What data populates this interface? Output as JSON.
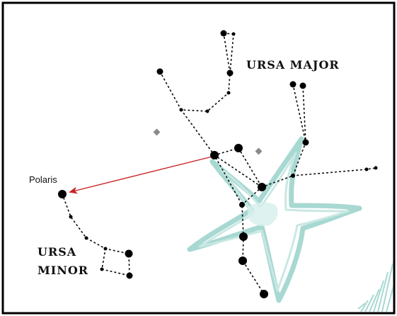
{
  "labels": {
    "ursa_major": "URSA MAJOR",
    "polaris": "Polaris",
    "ursa_minor_line1": "URSA",
    "ursa_minor_line2": "MINOR"
  },
  "colors": {
    "border": "#000000",
    "stars": "#000000",
    "pointer_arrow": "#cc2222",
    "starfish": "#a8d8d2",
    "diamond": "#8a8a8a"
  }
}
